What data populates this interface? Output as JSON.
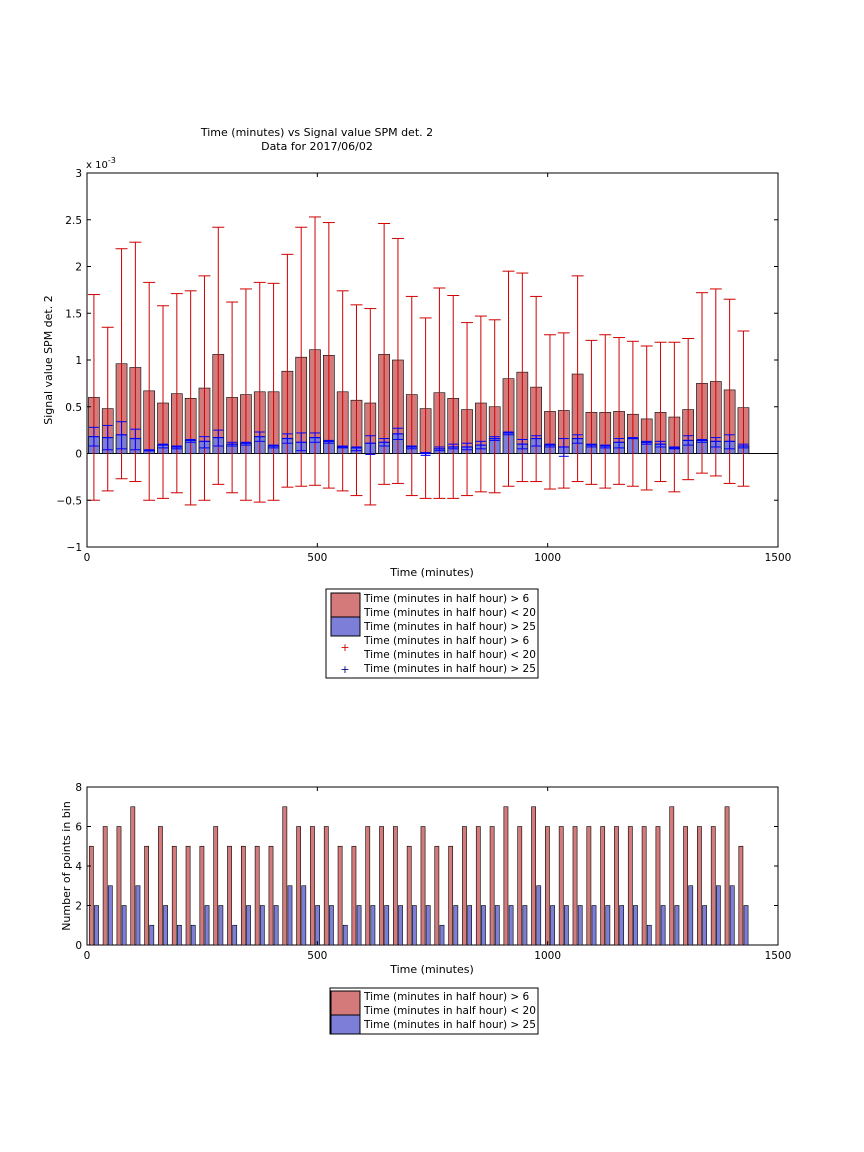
{
  "colors": {
    "red_bar": "#d47a7a",
    "blue_bar": "#7c7ed8",
    "red_error": "#d00000",
    "blue_error": "#0000ff"
  },
  "chart_data": [
    {
      "type": "bar",
      "title": "Time (minutes) vs Signal value SPM det. 2",
      "subtitle": "Data for 2017/06/02",
      "xlabel": "Time (minutes)",
      "ylabel": "Signal value SPM det. 2",
      "y_exponent_label": "x 10^-3",
      "xlim": [
        0,
        1500
      ],
      "ylim": [
        -1,
        3
      ],
      "y_scale_factor": 0.001,
      "xticks": [
        "0",
        "500",
        "1000",
        "1500"
      ],
      "yticks": [
        "−1",
        "−0.5",
        "0",
        "0.5",
        "1",
        "1.5",
        "2",
        "2.5",
        "3"
      ],
      "grid": false,
      "legend_position": "below",
      "legend": [
        "Time (minutes in half hour) > 6",
        "Time (minutes in half hour) < 20",
        "Time (minutes in half hour) > 25",
        "Time (minutes in half hour) > 6",
        "Time (minutes in half hour) < 20",
        "Time (minutes in half hour) > 25"
      ],
      "x": [
        15,
        45,
        75,
        105,
        135,
        165,
        195,
        225,
        255,
        285,
        315,
        345,
        375,
        405,
        435,
        465,
        495,
        525,
        555,
        585,
        615,
        645,
        675,
        705,
        735,
        765,
        795,
        825,
        855,
        885,
        915,
        945,
        975,
        1005,
        1035,
        1065,
        1095,
        1125,
        1155,
        1185,
        1215,
        1245,
        1275,
        1305,
        1335,
        1365,
        1395,
        1425
      ],
      "series": [
        {
          "values": [
            0.6,
            0.48,
            0.96,
            0.92,
            0.67,
            0.54,
            0.64,
            0.59,
            0.7,
            1.06,
            0.6,
            0.63,
            0.66,
            0.66,
            0.88,
            1.03,
            1.11,
            1.05,
            0.66,
            0.57,
            0.54,
            1.06,
            1.0,
            0.63,
            0.48,
            0.65,
            0.59,
            0.47,
            0.54,
            0.5,
            0.8,
            0.87,
            0.71,
            0.45,
            0.46,
            0.85,
            0.44,
            0.44,
            0.45,
            0.42,
            0.37,
            0.44,
            0.39,
            0.47,
            0.75,
            0.77,
            0.68,
            0.49
          ],
          "err_low": [
            -0.5,
            -0.4,
            -0.27,
            -0.3,
            -0.5,
            -0.48,
            -0.42,
            -0.55,
            -0.5,
            -0.33,
            -0.42,
            -0.5,
            -0.52,
            -0.5,
            -0.36,
            -0.35,
            -0.34,
            -0.37,
            -0.4,
            -0.45,
            -0.55,
            -0.33,
            -0.32,
            -0.45,
            -0.48,
            -0.48,
            -0.48,
            -0.45,
            -0.41,
            -0.42,
            -0.35,
            -0.3,
            -0.3,
            -0.38,
            -0.37,
            -0.3,
            -0.33,
            -0.37,
            -0.33,
            -0.35,
            -0.39,
            -0.3,
            -0.41,
            -0.28,
            -0.21,
            -0.24,
            -0.32,
            -0.35
          ],
          "err_high": [
            1.7,
            1.35,
            2.19,
            2.26,
            1.83,
            1.58,
            1.71,
            1.74,
            1.9,
            2.42,
            1.62,
            1.76,
            1.83,
            1.82,
            2.13,
            2.42,
            2.53,
            2.47,
            1.74,
            1.59,
            1.55,
            2.46,
            2.3,
            1.68,
            1.45,
            1.77,
            1.69,
            1.4,
            1.47,
            1.43,
            1.95,
            1.93,
            1.68,
            1.27,
            1.29,
            1.9,
            1.21,
            1.27,
            1.24,
            1.2,
            1.15,
            1.19,
            1.19,
            1.23,
            1.72,
            1.76,
            1.65,
            1.31
          ]
        },
        {
          "values": [
            0.18,
            0.17,
            0.2,
            0.16,
            0.03,
            0.09,
            0.07,
            0.14,
            0.13,
            0.17,
            0.1,
            0.11,
            0.18,
            0.08,
            0.16,
            0.12,
            0.17,
            0.13,
            0.07,
            0.06,
            0.11,
            0.12,
            0.21,
            0.07,
            0.0,
            0.05,
            0.07,
            0.07,
            0.09,
            0.16,
            0.22,
            0.1,
            0.16,
            0.09,
            0.07,
            0.16,
            0.09,
            0.08,
            0.12,
            0.16,
            0.12,
            0.1,
            0.06,
            0.14,
            0.14,
            0.13,
            0.13,
            0.08
          ],
          "err_low": [
            0.08,
            0.04,
            0.05,
            0.04,
            0.03,
            0.06,
            0.05,
            0.12,
            0.06,
            0.08,
            0.08,
            0.09,
            0.13,
            0.06,
            0.11,
            0.03,
            0.12,
            0.11,
            0.06,
            0.03,
            -0.01,
            0.08,
            0.15,
            0.05,
            -0.02,
            0.03,
            0.05,
            0.04,
            0.05,
            0.14,
            0.2,
            0.05,
            0.08,
            0.07,
            -0.03,
            0.11,
            0.07,
            0.06,
            0.06,
            0.16,
            0.1,
            0.07,
            0.05,
            0.09,
            0.12,
            0.07,
            0.05,
            0.06
          ],
          "err_high": [
            0.28,
            0.3,
            0.34,
            0.26,
            0.04,
            0.1,
            0.08,
            0.15,
            0.18,
            0.25,
            0.12,
            0.12,
            0.23,
            0.09,
            0.21,
            0.22,
            0.22,
            0.14,
            0.08,
            0.07,
            0.19,
            0.16,
            0.27,
            0.08,
            0.01,
            0.07,
            0.1,
            0.11,
            0.13,
            0.18,
            0.23,
            0.15,
            0.19,
            0.1,
            0.16,
            0.2,
            0.1,
            0.09,
            0.16,
            0.17,
            0.13,
            0.13,
            0.07,
            0.19,
            0.15,
            0.17,
            0.2,
            0.1
          ]
        }
      ]
    },
    {
      "type": "bar",
      "xlabel": "Time (minutes)",
      "ylabel": "Number of points in bin",
      "xlim": [
        0,
        1500
      ],
      "ylim": [
        0,
        8
      ],
      "xticks": [
        "0",
        "500",
        "1000",
        "1500"
      ],
      "yticks": [
        "0",
        "2",
        "4",
        "6",
        "8"
      ],
      "grid": false,
      "legend_position": "below",
      "legend": [
        "Time (minutes in half hour) > 6",
        "Time (minutes in half hour) < 20",
        "Time (minutes in half hour) > 25"
      ],
      "x": [
        15,
        45,
        75,
        105,
        135,
        165,
        195,
        225,
        255,
        285,
        315,
        345,
        375,
        405,
        435,
        465,
        495,
        525,
        555,
        585,
        615,
        645,
        675,
        705,
        735,
        765,
        795,
        825,
        855,
        885,
        915,
        945,
        975,
        1005,
        1035,
        1065,
        1095,
        1125,
        1155,
        1185,
        1215,
        1245,
        1275,
        1305,
        1335,
        1365,
        1395,
        1425
      ],
      "series": [
        {
          "values": [
            5,
            6,
            6,
            7,
            5,
            6,
            5,
            5,
            5,
            6,
            5,
            5,
            5,
            5,
            7,
            6,
            6,
            6,
            5,
            5,
            6,
            6,
            6,
            5,
            6,
            5,
            5,
            6,
            6,
            6,
            7,
            6,
            7,
            6,
            6,
            6,
            6,
            6,
            6,
            6,
            6,
            6,
            7,
            6,
            6,
            6,
            7,
            5
          ]
        },
        {
          "values": [
            2,
            3,
            2,
            3,
            1,
            2,
            1,
            1,
            2,
            2,
            1,
            2,
            2,
            2,
            3,
            3,
            2,
            2,
            1,
            2,
            2,
            2,
            2,
            2,
            2,
            1,
            2,
            2,
            2,
            2,
            2,
            2,
            3,
            2,
            2,
            2,
            2,
            2,
            2,
            2,
            1,
            2,
            2,
            3,
            2,
            3,
            3,
            2
          ]
        }
      ]
    }
  ]
}
